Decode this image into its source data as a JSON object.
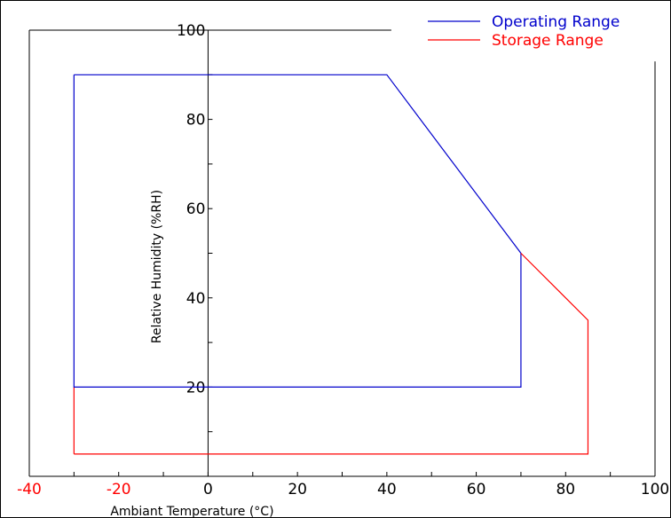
{
  "chart_data": {
    "type": "line",
    "title": "",
    "xlabel": "Ambiant Temperature (°C)",
    "ylabel": "Relative Humidity (%RH)",
    "xlim": [
      -40,
      100
    ],
    "ylim": [
      0,
      100
    ],
    "x_ticks": [
      -40,
      -20,
      0,
      20,
      40,
      60,
      80,
      100
    ],
    "x_tick_labels": [
      "-40",
      "-20",
      "0",
      "20",
      "40",
      "60",
      "80",
      "100"
    ],
    "x_tick_colors": [
      "#ff0000",
      "#ff0000",
      "#000000",
      "#000000",
      "#000000",
      "#000000",
      "#000000",
      "#000000"
    ],
    "y_ticks": [
      20,
      40,
      60,
      80,
      100
    ],
    "y_tick_labels": [
      "20",
      "40",
      "60",
      "80",
      "100"
    ],
    "y_minor_step": 10,
    "x_minor_step": 10,
    "legend_position": "top-right",
    "series": [
      {
        "name": "Operating Range",
        "color": "#0000cc",
        "x": [
          -30,
          40,
          70,
          70,
          -30,
          -30
        ],
        "y": [
          90,
          90,
          50,
          20,
          20,
          90
        ]
      },
      {
        "name": "Storage Range",
        "color": "#ff0000",
        "x": [
          -30,
          85,
          85,
          80,
          70
        ],
        "y": [
          5,
          5,
          35,
          40,
          50
        ]
      }
    ],
    "extra_segments": [
      {
        "color": "#ff0000",
        "x": [
          -30,
          -30
        ],
        "y": [
          20,
          5
        ]
      }
    ]
  }
}
